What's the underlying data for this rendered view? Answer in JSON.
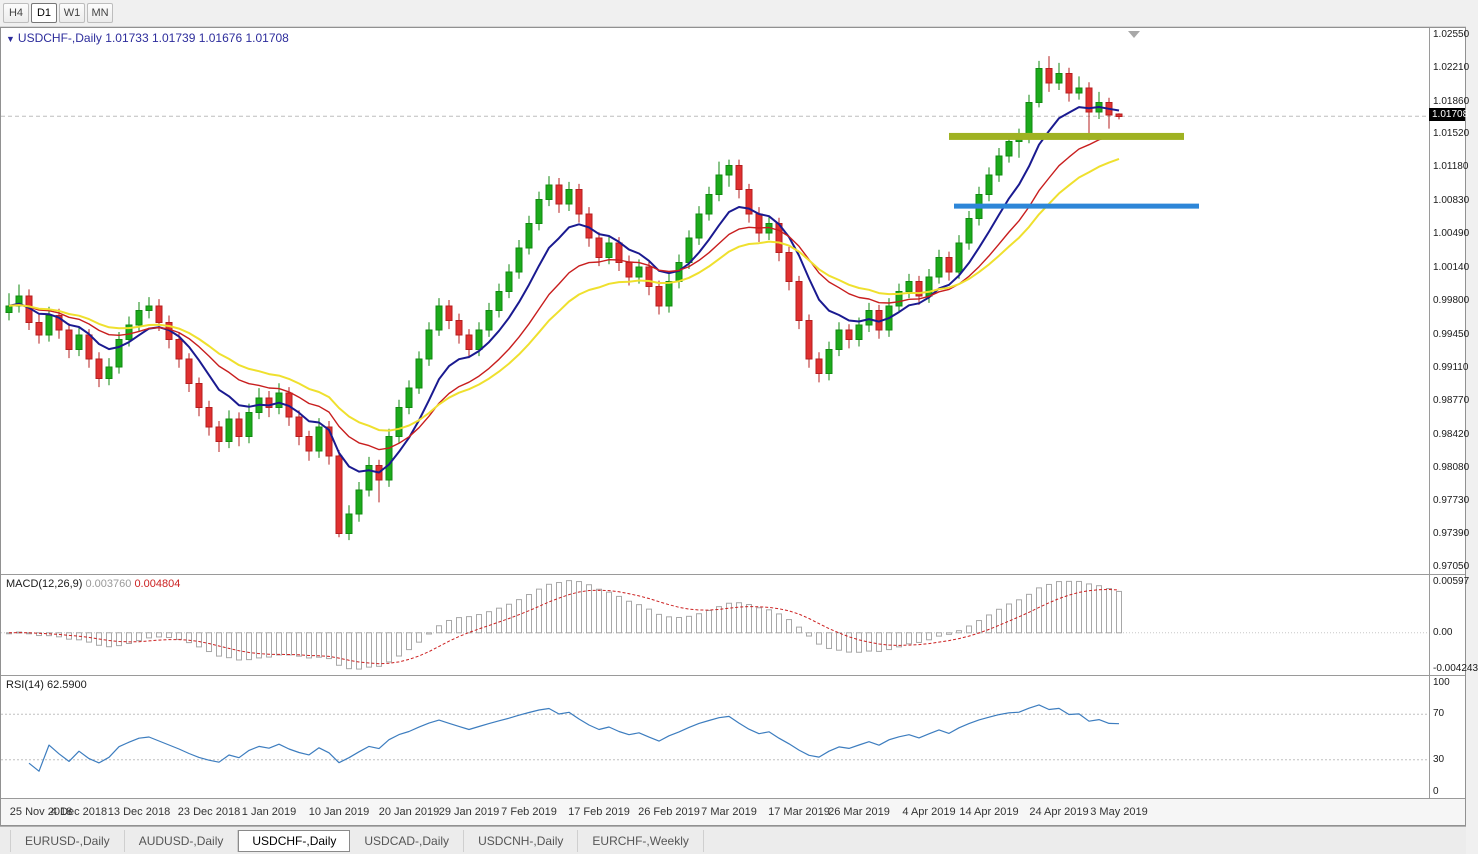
{
  "toolbar": {
    "timeframes": [
      {
        "label": "H4",
        "active": false
      },
      {
        "label": "D1",
        "active": true
      },
      {
        "label": "W1",
        "active": false
      },
      {
        "label": "MN",
        "active": false
      }
    ]
  },
  "icons": {
    "chart_dropdown": "▼"
  },
  "main_chart": {
    "symbol_period": "USDCHF-,Daily",
    "open": "1.01733",
    "high": "1.01739",
    "low": "1.01676",
    "close": "1.01708",
    "current_price_label": "1.01708"
  },
  "macd_panel": {
    "name": "MACD(12,26,9)",
    "main_value": "0.003760",
    "signal_value": "0.004804",
    "axis_labels": [
      "0.00597",
      "0.00",
      "-0.004243"
    ],
    "axis_values": [
      0.00597,
      0,
      -0.004243
    ]
  },
  "rsi_panel": {
    "name": "RSI(14)",
    "value": "62.5900",
    "axis_labels": [
      "100",
      "70",
      "30",
      "0"
    ],
    "axis_values": [
      100,
      70,
      30,
      0
    ],
    "levels": [
      70,
      30
    ]
  },
  "tabs": [
    {
      "label": "EURUSD-,Daily",
      "active": false
    },
    {
      "label": "AUDUSD-,Daily",
      "active": false
    },
    {
      "label": "USDCHF-,Daily",
      "active": true
    },
    {
      "label": "USDCAD-,Daily",
      "active": false
    },
    {
      "label": "USDCNH-,Daily",
      "active": false
    },
    {
      "label": "EURCHF-,Weekly",
      "active": false
    }
  ],
  "colors": {
    "bull": "#1cab1c",
    "bull_border": "#128a12",
    "bear": "#e03030",
    "bear_border": "#b51f1f",
    "ma_fast": "#1a1a90",
    "ma_mid": "#c81e1e",
    "ma_slow": "#efe02e",
    "macd_hist": "#a8a8a8",
    "macd_signal": "#cc2020",
    "rsi_line": "#3d7dbf",
    "overlay_green": "#9fb222",
    "overlay_blue": "#2d86d8",
    "price_line": "#bdbdbd",
    "price_tag_bg": "#000000"
  },
  "chart_data": {
    "type": "candlestick",
    "symbol": "USDCHF-",
    "period": "Daily",
    "current_price": 1.01708,
    "y_axis": {
      "range": [
        0.9698,
        1.0262
      ],
      "tick_labels": [
        "1.02550",
        "1.02210",
        "1.01860",
        "1.01520",
        "1.01180",
        "1.00830",
        "1.00490",
        "1.00140",
        "0.99800",
        "0.99450",
        "0.99110",
        "0.98770",
        "0.98420",
        "0.98080",
        "0.97730",
        "0.97390",
        "0.97050"
      ]
    },
    "x_axis": {
      "tick_labels": [
        "25 Nov 2018",
        "4 Dec 2018",
        "13 Dec 2018",
        "23 Dec 2018",
        "1 Jan 2019",
        "10 Jan 2019",
        "20 Jan 2019",
        "29 Jan 2019",
        "7 Feb 2019",
        "17 Feb 2019",
        "26 Feb 2019",
        "7 Mar 2019",
        "17 Mar 2019",
        "26 Mar 2019",
        "4 Apr 2019",
        "14 Apr 2019",
        "24 Apr 2019",
        "3 May 2019"
      ],
      "tick_indices": [
        0,
        7,
        13,
        20,
        26,
        33,
        40,
        46,
        52,
        59,
        66,
        72,
        79,
        85,
        92,
        98,
        105,
        111
      ]
    },
    "candles": [
      [
        0.9968,
        0.9988,
        0.996,
        0.9975
      ],
      [
        0.9975,
        0.9997,
        0.9968,
        0.9985
      ],
      [
        0.9985,
        0.9992,
        0.995,
        0.9958
      ],
      [
        0.9958,
        0.9966,
        0.9936,
        0.9945
      ],
      [
        0.9945,
        0.9974,
        0.9938,
        0.9965
      ],
      [
        0.9965,
        0.9972,
        0.9941,
        0.995
      ],
      [
        0.995,
        0.9957,
        0.9921,
        0.993
      ],
      [
        0.993,
        0.9953,
        0.9923,
        0.9945
      ],
      [
        0.9945,
        0.9951,
        0.9911,
        0.992
      ],
      [
        0.992,
        0.9927,
        0.9891,
        0.99
      ],
      [
        0.99,
        0.9921,
        0.9893,
        0.9912
      ],
      [
        0.9912,
        0.9948,
        0.9905,
        0.994
      ],
      [
        0.994,
        0.9964,
        0.9933,
        0.9955
      ],
      [
        0.9955,
        0.9979,
        0.9948,
        0.997
      ],
      [
        0.997,
        0.9984,
        0.9962,
        0.9975
      ],
      [
        0.9975,
        0.9982,
        0.9949,
        0.9958
      ],
      [
        0.9958,
        0.9965,
        0.9931,
        0.994
      ],
      [
        0.994,
        0.9947,
        0.9911,
        0.992
      ],
      [
        0.992,
        0.9926,
        0.9886,
        0.9895
      ],
      [
        0.9895,
        0.9901,
        0.9861,
        0.987
      ],
      [
        0.987,
        0.9877,
        0.9841,
        0.985
      ],
      [
        0.985,
        0.9856,
        0.9824,
        0.9835
      ],
      [
        0.9835,
        0.9867,
        0.9828,
        0.9858
      ],
      [
        0.9858,
        0.9865,
        0.983,
        0.984
      ],
      [
        0.984,
        0.9874,
        0.9833,
        0.9865
      ],
      [
        0.9865,
        0.989,
        0.9858,
        0.988
      ],
      [
        0.988,
        0.9887,
        0.986,
        0.987
      ],
      [
        0.987,
        0.9895,
        0.9863,
        0.9885
      ],
      [
        0.9885,
        0.9891,
        0.9851,
        0.986
      ],
      [
        0.986,
        0.9867,
        0.9831,
        0.984
      ],
      [
        0.984,
        0.9846,
        0.9815,
        0.9825
      ],
      [
        0.9825,
        0.9859,
        0.9818,
        0.985
      ],
      [
        0.985,
        0.9856,
        0.9811,
        0.982
      ],
      [
        0.982,
        0.9826,
        0.9736,
        0.974
      ],
      [
        0.974,
        0.9769,
        0.9733,
        0.976
      ],
      [
        0.976,
        0.9793,
        0.9752,
        0.9785
      ],
      [
        0.9785,
        0.9819,
        0.9778,
        0.981
      ],
      [
        0.981,
        0.9816,
        0.9772,
        0.9795
      ],
      [
        0.9795,
        0.9848,
        0.9788,
        0.984
      ],
      [
        0.984,
        0.9878,
        0.9833,
        0.987
      ],
      [
        0.987,
        0.9898,
        0.9863,
        0.989
      ],
      [
        0.989,
        0.9928,
        0.9884,
        0.992
      ],
      [
        0.992,
        0.9958,
        0.9913,
        0.995
      ],
      [
        0.995,
        0.9983,
        0.9944,
        0.9975
      ],
      [
        0.9975,
        0.9981,
        0.9951,
        0.996
      ],
      [
        0.996,
        0.9967,
        0.9936,
        0.9945
      ],
      [
        0.9945,
        0.9951,
        0.9921,
        0.993
      ],
      [
        0.993,
        0.9958,
        0.9923,
        0.995
      ],
      [
        0.995,
        0.9978,
        0.9943,
        0.997
      ],
      [
        0.997,
        0.9998,
        0.9963,
        0.999
      ],
      [
        0.999,
        1.0018,
        0.9983,
        1.001
      ],
      [
        1.001,
        1.0043,
        1.0003,
        1.0035
      ],
      [
        1.0035,
        1.0068,
        1.0028,
        1.006
      ],
      [
        1.006,
        1.0093,
        1.0053,
        1.0085
      ],
      [
        1.0085,
        1.0109,
        1.0078,
        1.01
      ],
      [
        1.01,
        1.0107,
        1.0071,
        1.008
      ],
      [
        1.008,
        1.0103,
        1.0073,
        1.0095
      ],
      [
        1.0095,
        1.0101,
        1.0061,
        1.007
      ],
      [
        1.007,
        1.0077,
        1.0036,
        1.0045
      ],
      [
        1.0045,
        1.0051,
        1.0016,
        1.0025
      ],
      [
        1.0025,
        1.0048,
        1.0018,
        1.004
      ],
      [
        1.004,
        1.0046,
        1.0011,
        1.002
      ],
      [
        1.002,
        1.0027,
        0.9996,
        1.0005
      ],
      [
        1.0005,
        1.0023,
        0.9998,
        1.0015
      ],
      [
        1.0015,
        1.0021,
        0.9986,
        0.9995
      ],
      [
        0.9995,
        1.0001,
        0.9966,
        0.9975
      ],
      [
        0.9975,
        1.0008,
        0.9968,
        1.0
      ],
      [
        1.0,
        1.0028,
        0.9993,
        1.002
      ],
      [
        1.002,
        1.0053,
        1.0013,
        1.0045
      ],
      [
        1.0045,
        1.0078,
        1.0038,
        1.007
      ],
      [
        1.007,
        1.0098,
        1.0063,
        1.009
      ],
      [
        1.009,
        1.0124,
        1.0083,
        1.011
      ],
      [
        1.011,
        1.0126,
        1.0098,
        1.012
      ],
      [
        1.012,
        1.0126,
        1.0086,
        1.0095
      ],
      [
        1.0095,
        1.0101,
        1.0061,
        1.007
      ],
      [
        1.007,
        1.0077,
        1.0041,
        1.005
      ],
      [
        1.005,
        1.0068,
        1.0043,
        1.006
      ],
      [
        1.006,
        1.0066,
        1.0021,
        1.003
      ],
      [
        1.003,
        1.0036,
        0.9991,
        1.0
      ],
      [
        1.0,
        1.0006,
        0.9951,
        0.996
      ],
      [
        0.996,
        0.9966,
        0.9911,
        0.992
      ],
      [
        0.992,
        0.9927,
        0.9896,
        0.9905
      ],
      [
        0.9905,
        0.9938,
        0.9898,
        0.993
      ],
      [
        0.993,
        0.9958,
        0.9923,
        0.995
      ],
      [
        0.995,
        0.9956,
        0.9931,
        0.994
      ],
      [
        0.994,
        0.9963,
        0.9933,
        0.9955
      ],
      [
        0.9955,
        0.9978,
        0.9948,
        0.997
      ],
      [
        0.997,
        0.9976,
        0.9941,
        0.995
      ],
      [
        0.995,
        0.9983,
        0.9943,
        0.9975
      ],
      [
        0.9975,
        0.9998,
        0.9968,
        0.999
      ],
      [
        0.999,
        1.0008,
        0.9983,
        1.0
      ],
      [
        1.0,
        1.0006,
        0.9976,
        0.9985
      ],
      [
        0.9985,
        1.0013,
        0.9978,
        1.0005
      ],
      [
        1.0005,
        1.0033,
        0.9998,
        1.0025
      ],
      [
        1.0025,
        1.0031,
        1.0001,
        1.001
      ],
      [
        1.001,
        1.0048,
        1.0003,
        1.004
      ],
      [
        1.004,
        1.0073,
        1.0033,
        1.0065
      ],
      [
        1.0065,
        1.0098,
        1.0058,
        1.009
      ],
      [
        1.009,
        1.0118,
        1.0083,
        1.011
      ],
      [
        1.011,
        1.0138,
        1.0103,
        1.013
      ],
      [
        1.013,
        1.0153,
        1.0123,
        1.0145
      ],
      [
        1.0145,
        1.0158,
        1.0128,
        1.015
      ],
      [
        1.015,
        1.0193,
        1.0143,
        1.0185
      ],
      [
        1.0185,
        1.0228,
        1.018,
        1.022
      ],
      [
        1.022,
        1.0233,
        1.0196,
        1.0205
      ],
      [
        1.0205,
        1.0226,
        1.0198,
        1.0215
      ],
      [
        1.0215,
        1.0221,
        1.0186,
        1.0195
      ],
      [
        1.0195,
        1.0212,
        1.0188,
        1.02
      ],
      [
        1.02,
        1.0206,
        1.0146,
        1.0175
      ],
      [
        1.0175,
        1.0196,
        1.0168,
        1.0185
      ],
      [
        1.0185,
        1.019,
        1.0158,
        1.0172
      ],
      [
        1.01733,
        1.01739,
        1.01676,
        1.01708
      ]
    ],
    "moving_averages": [
      {
        "type": "ema",
        "period": 8,
        "color": "#1a1a90",
        "width": 2
      },
      {
        "type": "ema",
        "period": 16,
        "color": "#c81e1e",
        "width": 1.4
      },
      {
        "type": "ema",
        "period": 24,
        "color": "#efe02e",
        "width": 2
      }
    ],
    "overlays": [
      {
        "type": "horizontal-segment",
        "price": 1.015,
        "from_index": 94,
        "to_index": 117.5,
        "color": "#9fb222",
        "thickness": 7
      },
      {
        "type": "horizontal-segment",
        "price": 1.0078,
        "from_index": 94.5,
        "to_index": 119,
        "color": "#2d86d8",
        "thickness": 5
      }
    ],
    "indicators": [
      {
        "name": "MACD",
        "params": [
          12,
          26,
          9
        ],
        "values": [
          0.00376,
          0.004804
        ],
        "axis_max": 0.00597,
        "axis_min": -0.004243
      },
      {
        "name": "RSI",
        "params": [
          14
        ],
        "value": 62.59,
        "levels": [
          70,
          30
        ],
        "axis_max": 100,
        "axis_min": 0
      }
    ]
  }
}
